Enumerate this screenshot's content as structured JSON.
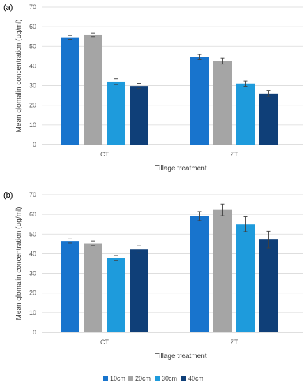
{
  "colors": {
    "10cm": "#1874cd",
    "20cm": "#a5a5a5",
    "30cm": "#1e9bdc",
    "40cm": "#0f3f78",
    "grid": "#d9d9d9",
    "axis": "#bfbfbf",
    "error": "#404040"
  },
  "legend": {
    "position": "bottom",
    "entries": [
      "10cm",
      "20cm",
      "30cm",
      "40cm"
    ]
  },
  "chart_data": [
    {
      "type": "bar",
      "panel_label": "(a)",
      "ylabel": "Mean glomalin concentration (µg/ml)",
      "xlabel": "Tillage treatment",
      "categories": [
        "CT",
        "ZT"
      ],
      "ylim": [
        0,
        70
      ],
      "yticks": [
        0,
        10,
        20,
        30,
        40,
        50,
        60,
        70
      ],
      "grid": true,
      "series": [
        {
          "name": "10cm",
          "values": [
            54.5,
            44.5
          ],
          "errors": [
            1.0,
            1.3
          ]
        },
        {
          "name": "20cm",
          "values": [
            55.8,
            42.5
          ],
          "errors": [
            1.0,
            1.5
          ]
        },
        {
          "name": "30cm",
          "values": [
            32.0,
            31.0
          ],
          "errors": [
            1.5,
            1.3
          ]
        },
        {
          "name": "40cm",
          "values": [
            29.8,
            26.0
          ],
          "errors": [
            1.3,
            1.5
          ]
        }
      ]
    },
    {
      "type": "bar",
      "panel_label": "(b)",
      "ylabel": "Mean glomalin concentration (µg/ml)",
      "xlabel": "Tillage treatment",
      "categories": [
        "CT",
        "ZT"
      ],
      "ylim": [
        0,
        70
      ],
      "yticks": [
        0,
        10,
        20,
        30,
        40,
        50,
        60,
        70
      ],
      "grid": true,
      "series": [
        {
          "name": "10cm",
          "values": [
            46.5,
            59.2
          ],
          "errors": [
            1.0,
            2.3
          ]
        },
        {
          "name": "20cm",
          "values": [
            45.3,
            62.3
          ],
          "errors": [
            1.2,
            3.0
          ]
        },
        {
          "name": "30cm",
          "values": [
            37.8,
            55.0
          ],
          "errors": [
            1.3,
            3.8
          ]
        },
        {
          "name": "40cm",
          "values": [
            42.2,
            47.2
          ],
          "errors": [
            1.8,
            4.2
          ]
        }
      ]
    }
  ]
}
